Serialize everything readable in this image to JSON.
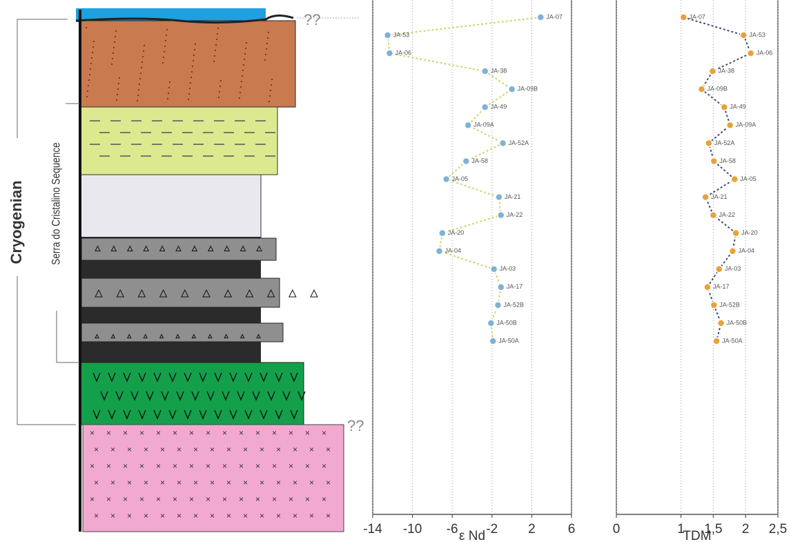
{
  "column": {
    "period": "Cryogenian",
    "sequence": "Serra do Cristalino Sequence",
    "unconformity_marks": [
      "??",
      "??"
    ]
  },
  "chart_data": [
    {
      "type": "line",
      "x_label": "ε Nd",
      "categories": [
        "JA-07",
        "JA-53",
        "JA-06",
        "JA-38",
        "JA-09B",
        "JA-49",
        "JA-09A",
        "JA-52A",
        "JA-58",
        "JA-05",
        "JA-21",
        "JA-22",
        "JA-20",
        "JA-04",
        "JA-03",
        "JA-17",
        "JA-52B",
        "JA-50B",
        "JA-50A"
      ],
      "values": [
        2.9,
        -12.5,
        -12.3,
        -2.7,
        0,
        -2.7,
        -4.4,
        -0.9,
        -4.6,
        -6.6,
        -1.3,
        -1.1,
        -7.0,
        -7.3,
        -1.8,
        -1.1,
        -1.4,
        -2.1,
        -1.9
      ],
      "xlim": [
        -14,
        6
      ],
      "xticks": [
        -14,
        -10,
        -6,
        -2,
        2,
        6
      ],
      "grid": true,
      "color": "#c8d86a",
      "marker_color": "#7fb2d6"
    },
    {
      "type": "line",
      "x_label": "TDM",
      "categories": [
        "JA-07",
        "JA-53",
        "JA-06",
        "JA-38",
        "JA-09B",
        "JA-49",
        "JA-09A",
        "JA-52A",
        "JA-58",
        "JA-05",
        "JA-21",
        "JA-22",
        "JA-20",
        "JA-04",
        "JA-03",
        "JA-17",
        "JA-52B",
        "JA-50B",
        "JA-50A"
      ],
      "values": [
        1.04,
        1.97,
        2.08,
        1.49,
        1.32,
        1.67,
        1.76,
        1.43,
        1.51,
        1.83,
        1.38,
        1.5,
        1.85,
        1.8,
        1.59,
        1.41,
        1.51,
        1.62,
        1.55
      ],
      "xlim": [
        0,
        2.5
      ],
      "xticks": [
        0,
        1,
        {
          "value": 1.5,
          "label": "1,5"
        },
        2,
        {
          "value": 2.5,
          "label": "2,5"
        }
      ],
      "grid": true,
      "color": "#3d4a7a",
      "marker_color": "#e8a23a"
    }
  ]
}
